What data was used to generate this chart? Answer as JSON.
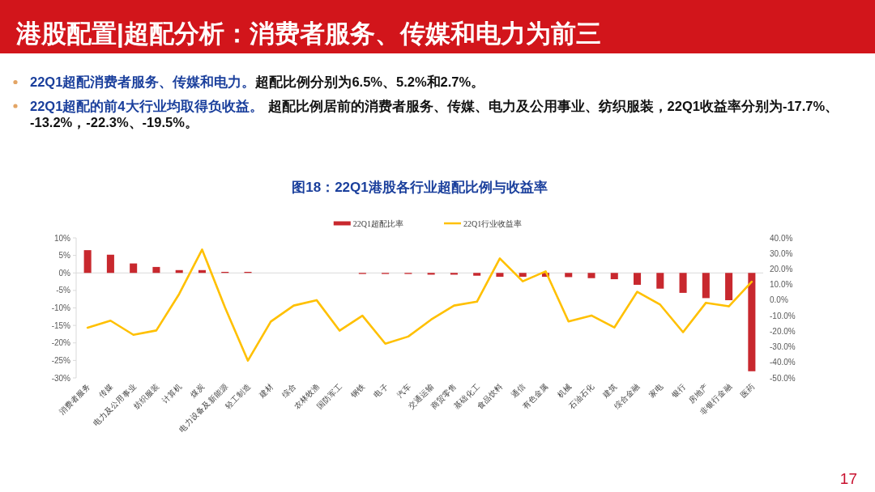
{
  "chart_data": {
    "type": "bar",
    "title": "港股配置|超配分析：消费者服务、传媒和电力为前三",
    "subtitle": "图18：22Q1港股各行业超配比例与收益率",
    "categories": [
      "消费者服务",
      "传媒",
      "电力及公用事业",
      "纺织服装",
      "计算机",
      "煤炭",
      "电力设备及新能源",
      "轻工制造",
      "建材",
      "综合",
      "农林牧渔",
      "国防军工",
      "钢铁",
      "电子",
      "汽车",
      "交通运输",
      "商贸零售",
      "基础化工",
      "食品饮料",
      "通信",
      "有色金属",
      "机械",
      "石油石化",
      "建筑",
      "综合金融",
      "家电",
      "银行",
      "房地产",
      "非银行金融",
      "医药"
    ],
    "series": [
      {
        "name": "22Q1超配比率",
        "type": "bar",
        "color": "#c8282e",
        "values": [
          6.5,
          5.2,
          2.7,
          1.7,
          0.8,
          0.8,
          0.3,
          0.3,
          0,
          0,
          0,
          0,
          -0.3,
          -0.3,
          -0.3,
          -0.5,
          -0.5,
          -0.8,
          -1.1,
          -1.1,
          -1.1,
          -1.2,
          -1.5,
          -1.8,
          -3.4,
          -4.5,
          -5.7,
          -7.2,
          -7.8,
          -28.1
        ]
      },
      {
        "name": "22Q1行业收益率",
        "type": "line",
        "axis": "y2",
        "color": "#ffc000",
        "line_style": "solid",
        "values": [
          -17.7,
          -13.2,
          -22.3,
          -19.5,
          4.0,
          32.5,
          -4.7,
          -38.9,
          -13.8,
          -3.5,
          0.0,
          -19.6,
          -10.0,
          -28.0,
          -23.4,
          -12.5,
          -3.5,
          -1.0,
          26.8,
          12.1,
          18.5,
          -13.7,
          -9.9,
          -17.6,
          5.4,
          -2.9,
          -20.6,
          -1.7,
          -4.0,
          11.8
        ]
      }
    ],
    "ylim": [
      -30,
      10
    ],
    "yticks": [
      {
        "value": 10,
        "label": "10%"
      },
      {
        "value": 5,
        "label": "5%"
      },
      {
        "value": 0,
        "label": "0%"
      },
      {
        "value": -5,
        "label": "-5%"
      },
      {
        "value": -10,
        "label": "-10%"
      },
      {
        "value": -15,
        "label": "-15%"
      },
      {
        "value": -20,
        "label": "-20%"
      },
      {
        "value": -25,
        "label": "-25%"
      },
      {
        "value": -30,
        "label": "-30%"
      }
    ],
    "y2lim": [
      -50,
      40
    ],
    "y2ticks": [
      {
        "value": 40,
        "label": "40.0%"
      },
      {
        "value": 30,
        "label": "30.0%"
      },
      {
        "value": 20,
        "label": "20.0%"
      },
      {
        "value": 10,
        "label": "10.0%"
      },
      {
        "value": 0,
        "label": "0.0%"
      },
      {
        "value": -10,
        "label": "-10.0%"
      },
      {
        "value": -20,
        "label": "-20.0%"
      },
      {
        "value": -30,
        "label": "-30.0%"
      },
      {
        "value": -40,
        "label": "-40.0%"
      },
      {
        "value": -50,
        "label": "-50.0%"
      }
    ],
    "legend": "top",
    "annotations": [
      "22Q1超配消费者服务、传媒和电力。",
      "超配比例分别为6.5%、5.2%和2.7%。",
      "22Q1超配的前4大行业均取得负收益。",
      "超配比例居前的消费者服务、传媒、电力及公用事业、纺织服装，22Q1收益率分别为-17.7%、",
      "-13.2%，-22.3%、-19.5%。",
      "17"
    ]
  }
}
